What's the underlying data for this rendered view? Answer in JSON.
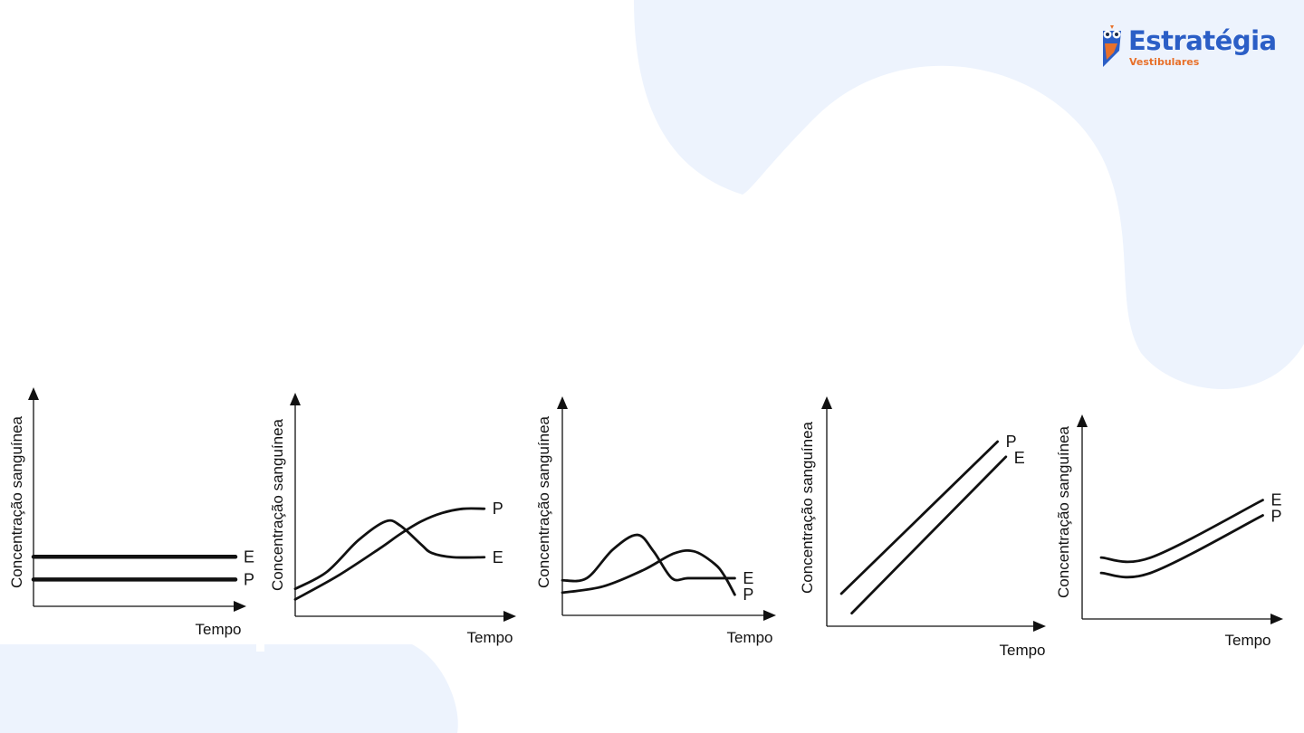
{
  "brand": {
    "name": "Estratégia",
    "subtitle": "Vestibulares",
    "logo_icon": "owl-icon",
    "colors": {
      "primary": "#2b5ec6",
      "accent": "#e8702a",
      "background_shape": "#edf3fd"
    }
  },
  "chart_data": [
    {
      "type": "line",
      "xlabel": "Tempo",
      "ylabel": "Concentração sanguínea",
      "xlim": [
        0,
        10
      ],
      "ylim": [
        0,
        10
      ],
      "grid": false,
      "series": [
        {
          "name": "E",
          "x": [
            0,
            10
          ],
          "y": [
            2.4,
            2.4
          ]
        },
        {
          "name": "P",
          "x": [
            0,
            10
          ],
          "y": [
            1.3,
            1.3
          ]
        }
      ]
    },
    {
      "type": "line",
      "xlabel": "Tempo",
      "ylabel": "Concentração sanguínea",
      "xlim": [
        0,
        10
      ],
      "ylim": [
        0,
        10
      ],
      "grid": false,
      "series": [
        {
          "name": "P",
          "x": [
            0,
            2,
            4,
            5,
            6,
            7,
            8,
            9
          ],
          "y": [
            0.8,
            1.9,
            3.2,
            3.9,
            4.5,
            4.9,
            5.1,
            5.1
          ]
        },
        {
          "name": "E",
          "x": [
            0,
            1.5,
            3,
            4.3,
            5,
            6,
            6.5,
            7.5,
            9
          ],
          "y": [
            1.3,
            2.1,
            3.6,
            4.5,
            4.3,
            3.4,
            3.0,
            2.8,
            2.8
          ]
        }
      ]
    },
    {
      "type": "line",
      "xlabel": "Tempo",
      "ylabel": "Concentração sanguínea",
      "xlim": [
        0,
        10
      ],
      "ylim": [
        0,
        10
      ],
      "grid": false,
      "series": [
        {
          "name": "E",
          "x": [
            0,
            1.2,
            2.5,
            3.7,
            4.5,
            5.4,
            6.2,
            7.5,
            8.5
          ],
          "y": [
            1.7,
            1.8,
            3.2,
            3.9,
            3.1,
            1.8,
            1.8,
            1.8,
            1.8
          ]
        },
        {
          "name": "P",
          "x": [
            0,
            2,
            4,
            5.5,
            6.5,
            7.5,
            8.0,
            8.5
          ],
          "y": [
            1.1,
            1.4,
            2.2,
            3.0,
            3.1,
            2.5,
            1.9,
            1.0
          ]
        }
      ]
    },
    {
      "type": "line",
      "xlabel": "Tempo",
      "ylabel": "Concentração sanguínea",
      "xlim": [
        0,
        10
      ],
      "ylim": [
        0,
        10
      ],
      "grid": false,
      "series": [
        {
          "name": "P",
          "x": [
            0.7,
            8.2
          ],
          "y": [
            1.5,
            8.5
          ]
        },
        {
          "name": "E",
          "x": [
            1.2,
            8.6
          ],
          "y": [
            0.6,
            7.8
          ]
        }
      ]
    },
    {
      "type": "line",
      "xlabel": "Tempo",
      "ylabel": "Concentração sanguínea",
      "xlim": [
        0,
        10
      ],
      "ylim": [
        0,
        10
      ],
      "grid": false,
      "series": [
        {
          "name": "E",
          "x": [
            1,
            3.6,
            9.5
          ],
          "y": [
            3.2,
            3.2,
            6.2
          ]
        },
        {
          "name": "P",
          "x": [
            1,
            3.6,
            9.5
          ],
          "y": [
            2.4,
            2.4,
            5.4
          ]
        }
      ]
    }
  ]
}
